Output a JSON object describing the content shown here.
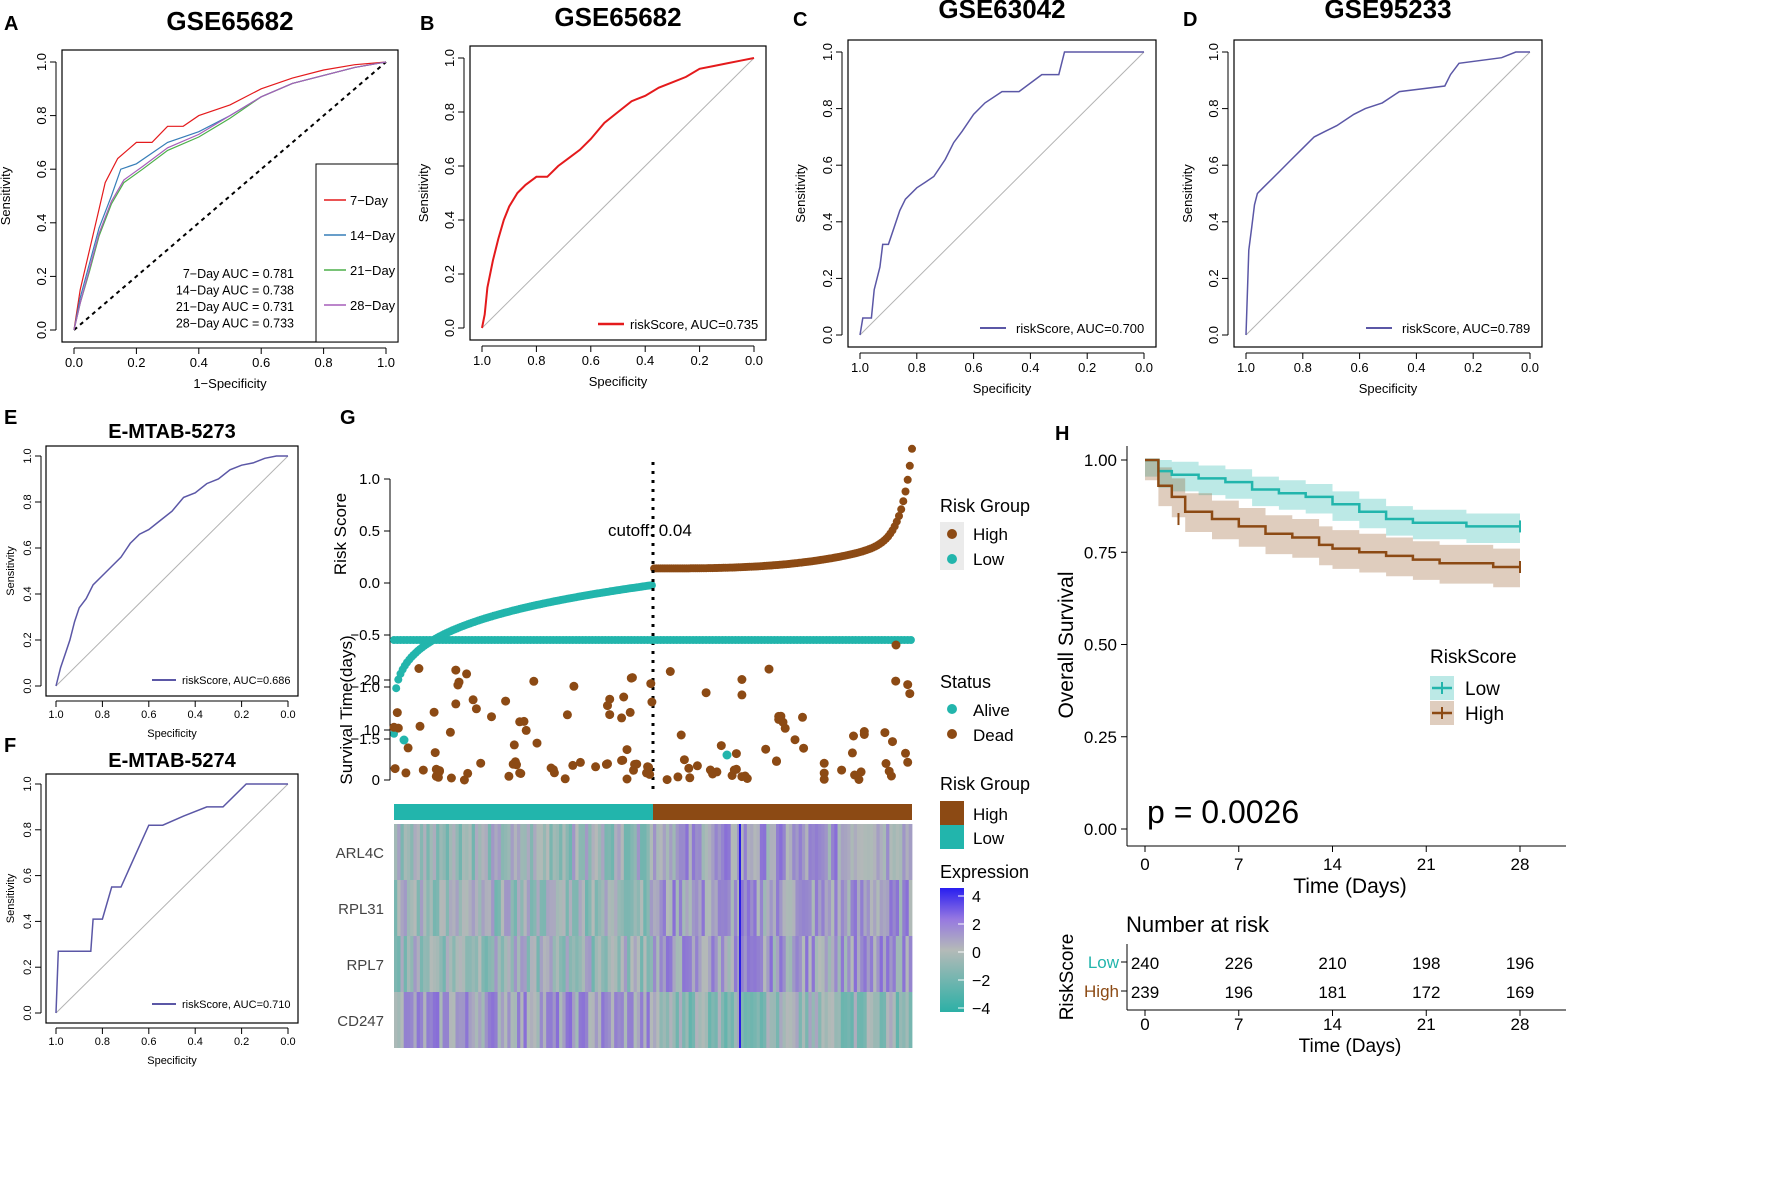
{
  "colors": {
    "red": "#e41a1c",
    "purple": "#5b57a6",
    "teal": "#22b5ac",
    "brown": "#8c4a14",
    "green": "#4daf4a",
    "blue": "#377eb8",
    "violet": "#a65eba",
    "grey": "#b3b3b3"
  },
  "panels": [
    {
      "id": "A",
      "letter": "A",
      "title": "GSE65682",
      "xlabel": "1−Specificity",
      "ylabel": "Sensitivity",
      "xticks": [
        "0.0",
        "0.2",
        "0.4",
        "0.6",
        "0.8",
        "1.0"
      ],
      "yticks": [
        "0.0",
        "0.2",
        "0.4",
        "0.6",
        "0.8",
        "1.0"
      ],
      "legend": [
        "7−Day",
        "14−Day",
        "21−Day",
        "28−Day"
      ],
      "auc_lines": [
        "7−Day AUC =  0.781",
        "14−Day AUC =  0.738",
        "21−Day AUC =  0.731",
        "28−Day AUC =  0.733"
      ]
    },
    {
      "id": "B",
      "letter": "B",
      "title": "GSE65682",
      "xlabel": "Specificity",
      "ylabel": "Sensitivity",
      "xticks": [
        "1.0",
        "0.8",
        "0.6",
        "0.4",
        "0.2",
        "0.0"
      ],
      "yticks": [
        "0.0",
        "0.2",
        "0.4",
        "0.6",
        "0.8",
        "1.0"
      ],
      "legend": "riskScore, AUC=0.735"
    },
    {
      "id": "C",
      "letter": "C",
      "title": "GSE63042",
      "xlabel": "Specificity",
      "ylabel": "Sensitivity",
      "xticks": [
        "1.0",
        "0.8",
        "0.6",
        "0.4",
        "0.2",
        "0.0"
      ],
      "yticks": [
        "0.0",
        "0.2",
        "0.4",
        "0.6",
        "0.8",
        "1.0"
      ],
      "legend": "riskScore, AUC=0.700"
    },
    {
      "id": "D",
      "letter": "D",
      "title": "GSE95233",
      "xlabel": "Specificity",
      "ylabel": "Sensitivity",
      "xticks": [
        "1.0",
        "0.8",
        "0.6",
        "0.4",
        "0.2",
        "0.0"
      ],
      "yticks": [
        "0.0",
        "0.2",
        "0.4",
        "0.6",
        "0.8",
        "1.0"
      ],
      "legend": "riskScore, AUC=0.789"
    },
    {
      "id": "E",
      "letter": "E",
      "title": "E-MTAB-5273",
      "xlabel": "Specificity",
      "ylabel": "Sensitivity",
      "xticks": [
        "1.0",
        "0.8",
        "0.6",
        "0.4",
        "0.2",
        "0.0"
      ],
      "yticks": [
        "0.0",
        "0.2",
        "0.4",
        "0.6",
        "0.8",
        "1.0"
      ],
      "legend": "riskScore, AUC=0.686"
    },
    {
      "id": "F",
      "letter": "F",
      "title": "E-MTAB-5274",
      "xlabel": "Specificity",
      "ylabel": "Sensitivity",
      "xticks": [
        "1.0",
        "0.8",
        "0.6",
        "0.4",
        "0.2",
        "0.0"
      ],
      "yticks": [
        "0.0",
        "0.2",
        "0.4",
        "0.6",
        "0.8",
        "1.0"
      ],
      "legend": "riskScore, AUC=0.710"
    }
  ],
  "panel_g": {
    "letter": "G",
    "risk_ylabel": "Risk Score",
    "risk_yticks": [
      "1.0",
      "0.5",
      "0.0",
      "−0.5",
      "−1.0",
      "−1.5"
    ],
    "cutoff_label": "cutoff: 0.04",
    "surv_ylabel": "Survival Time(days)",
    "surv_yticks": [
      "20",
      "10",
      "0"
    ],
    "legend_risk_title": "Risk Group",
    "legend_risk_items": [
      "High",
      "Low"
    ],
    "legend_status_title": "Status",
    "legend_status_items": [
      "Alive",
      "Dead"
    ],
    "legend_bar_title": "Risk Group",
    "legend_bar_items": [
      "High",
      "Low"
    ],
    "legend_expr_title": "Expression",
    "legend_expr_ticks": [
      "4",
      "2",
      "0",
      "−2",
      "−4"
    ],
    "genes": [
      "ARL4C",
      "RPL31",
      "RPL7",
      "CD247"
    ]
  },
  "panel_h": {
    "letter": "H",
    "ylabel": "Overall Survival",
    "xlabel": "Time (Days)",
    "yticks": [
      "1.00",
      "0.75",
      "0.50",
      "0.25",
      "0.00"
    ],
    "xticks": [
      "0",
      "7",
      "14",
      "21",
      "28"
    ],
    "legend_title": "RiskScore",
    "legend_items": [
      "Low",
      "High"
    ],
    "pvalue": "p = 0.0026",
    "risk_title": "Number at risk",
    "risk_ylabel": "RiskScore",
    "risk_rows": [
      "Low",
      "High"
    ],
    "risk_low": [
      "240",
      "226",
      "210",
      "198",
      "196"
    ],
    "risk_high": [
      "239",
      "196",
      "181",
      "172",
      "169"
    ],
    "risk_xlabel": "Time (Days)"
  },
  "chart_data": [
    {
      "type": "line",
      "panel": "A",
      "title": "GSE65682",
      "xlabel": "1−Specificity",
      "ylabel": "Sensitivity",
      "xlim": [
        0,
        1
      ],
      "ylim": [
        0,
        1
      ],
      "series": [
        {
          "name": "7−Day",
          "x": [
            0,
            0.02,
            0.05,
            0.08,
            0.1,
            0.14,
            0.2,
            0.25,
            0.3,
            0.35,
            0.4,
            0.5,
            0.6,
            0.7,
            0.8,
            0.9,
            1.0
          ],
          "y": [
            0,
            0.15,
            0.3,
            0.45,
            0.55,
            0.64,
            0.7,
            0.7,
            0.76,
            0.76,
            0.8,
            0.84,
            0.9,
            0.94,
            0.97,
            0.99,
            1.0
          ]
        },
        {
          "name": "14−Day",
          "x": [
            0,
            0.02,
            0.05,
            0.08,
            0.12,
            0.15,
            0.2,
            0.3,
            0.4,
            0.5,
            0.6,
            0.7,
            0.8,
            0.9,
            1.0
          ],
          "y": [
            0,
            0.12,
            0.25,
            0.38,
            0.5,
            0.6,
            0.62,
            0.7,
            0.74,
            0.8,
            0.87,
            0.92,
            0.95,
            0.98,
            1.0
          ]
        },
        {
          "name": "21−Day",
          "x": [
            0,
            0.02,
            0.05,
            0.08,
            0.12,
            0.16,
            0.22,
            0.3,
            0.4,
            0.5,
            0.6,
            0.7,
            0.8,
            0.9,
            1.0
          ],
          "y": [
            0,
            0.1,
            0.22,
            0.35,
            0.47,
            0.55,
            0.6,
            0.67,
            0.72,
            0.79,
            0.87,
            0.92,
            0.95,
            0.98,
            1.0
          ]
        },
        {
          "name": "28−Day",
          "x": [
            0,
            0.02,
            0.05,
            0.08,
            0.12,
            0.16,
            0.22,
            0.3,
            0.4,
            0.5,
            0.6,
            0.7,
            0.8,
            0.9,
            1.0
          ],
          "y": [
            0,
            0.1,
            0.23,
            0.36,
            0.48,
            0.56,
            0.61,
            0.68,
            0.73,
            0.8,
            0.87,
            0.92,
            0.95,
            0.98,
            1.0
          ]
        }
      ]
    },
    {
      "type": "line",
      "panel": "B",
      "title": "GSE65682",
      "xlabel": "Specificity",
      "ylabel": "Sensitivity",
      "xlim": [
        1,
        0
      ],
      "ylim": [
        0,
        1
      ],
      "series": [
        {
          "name": "riskScore, AUC=0.735",
          "x": [
            1,
            0.99,
            0.98,
            0.96,
            0.94,
            0.92,
            0.9,
            0.87,
            0.84,
            0.8,
            0.76,
            0.72,
            0.68,
            0.64,
            0.6,
            0.55,
            0.5,
            0.45,
            0.4,
            0.35,
            0.3,
            0.25,
            0.2,
            0.15,
            0.1,
            0.05,
            0
          ],
          "y": [
            0,
            0.05,
            0.15,
            0.25,
            0.33,
            0.4,
            0.45,
            0.5,
            0.53,
            0.56,
            0.56,
            0.6,
            0.63,
            0.66,
            0.7,
            0.76,
            0.8,
            0.84,
            0.86,
            0.89,
            0.91,
            0.93,
            0.96,
            0.97,
            0.98,
            0.99,
            1.0
          ]
        }
      ]
    },
    {
      "type": "line",
      "panel": "C",
      "title": "GSE63042",
      "xlabel": "Specificity",
      "ylabel": "Sensitivity",
      "xlim": [
        1,
        0
      ],
      "ylim": [
        0,
        1
      ],
      "series": [
        {
          "name": "riskScore, AUC=0.700",
          "x": [
            1,
            0.99,
            0.96,
            0.95,
            0.93,
            0.92,
            0.9,
            0.88,
            0.86,
            0.84,
            0.8,
            0.77,
            0.74,
            0.7,
            0.67,
            0.64,
            0.6,
            0.56,
            0.5,
            0.44,
            0.36,
            0.3,
            0.28,
            0
          ],
          "y": [
            0,
            0.06,
            0.06,
            0.16,
            0.24,
            0.32,
            0.32,
            0.38,
            0.44,
            0.48,
            0.52,
            0.54,
            0.56,
            0.62,
            0.68,
            0.72,
            0.78,
            0.82,
            0.86,
            0.86,
            0.92,
            0.92,
            1.0,
            1.0
          ]
        }
      ]
    },
    {
      "type": "line",
      "panel": "D",
      "title": "GSE95233",
      "xlabel": "Specificity",
      "ylabel": "Sensitivity",
      "xlim": [
        1,
        0
      ],
      "ylim": [
        0,
        1
      ],
      "series": [
        {
          "name": "riskScore, AUC=0.789",
          "x": [
            1,
            0.99,
            0.98,
            0.97,
            0.96,
            0.94,
            0.92,
            0.88,
            0.84,
            0.8,
            0.76,
            0.72,
            0.68,
            0.62,
            0.58,
            0.52,
            0.46,
            0.3,
            0.28,
            0.25,
            0.1,
            0.05,
            0
          ],
          "y": [
            0,
            0.3,
            0.38,
            0.46,
            0.5,
            0.52,
            0.54,
            0.58,
            0.62,
            0.66,
            0.7,
            0.72,
            0.74,
            0.78,
            0.8,
            0.82,
            0.86,
            0.88,
            0.92,
            0.96,
            0.98,
            1.0,
            1.0
          ]
        }
      ]
    },
    {
      "type": "line",
      "panel": "E",
      "title": "E-MTAB-5273",
      "xlabel": "Specificity",
      "ylabel": "Sensitivity",
      "xlim": [
        1,
        0
      ],
      "ylim": [
        0,
        1
      ],
      "series": [
        {
          "name": "riskScore, AUC=0.686",
          "x": [
            1,
            0.98,
            0.96,
            0.94,
            0.92,
            0.9,
            0.87,
            0.84,
            0.8,
            0.76,
            0.72,
            0.68,
            0.64,
            0.6,
            0.55,
            0.5,
            0.45,
            0.4,
            0.35,
            0.3,
            0.25,
            0.2,
            0.15,
            0.1,
            0.05,
            0
          ],
          "y": [
            0,
            0.08,
            0.14,
            0.2,
            0.28,
            0.34,
            0.38,
            0.44,
            0.48,
            0.52,
            0.56,
            0.62,
            0.66,
            0.68,
            0.72,
            0.76,
            0.82,
            0.84,
            0.88,
            0.9,
            0.94,
            0.96,
            0.97,
            0.99,
            1.0,
            1.0
          ]
        }
      ]
    },
    {
      "type": "line",
      "panel": "F",
      "title": "E-MTAB-5274",
      "xlabel": "Specificity",
      "ylabel": "Sensitivity",
      "xlim": [
        1,
        0
      ],
      "ylim": [
        0,
        1
      ],
      "series": [
        {
          "name": "riskScore, AUC=0.710",
          "x": [
            1,
            0.99,
            0.85,
            0.84,
            0.8,
            0.76,
            0.72,
            0.64,
            0.6,
            0.54,
            0.45,
            0.35,
            0.28,
            0.18,
            0.1,
            0.0
          ],
          "y": [
            0,
            0.27,
            0.27,
            0.41,
            0.41,
            0.55,
            0.55,
            0.73,
            0.82,
            0.82,
            0.86,
            0.9,
            0.9,
            1.0,
            1.0,
            1.0
          ]
        }
      ]
    },
    {
      "type": "scatter",
      "panel": "G",
      "ylabel": "Risk Score",
      "ylim": [
        -1.5,
        1.3
      ],
      "cutoff": 0.04,
      "n_low": 240,
      "n_high": 239
    },
    {
      "type": "line",
      "panel": "H",
      "xlabel": "Time (Days)",
      "ylabel": "Overall Survival",
      "xlim": [
        0,
        28
      ],
      "ylim": [
        0,
        1
      ],
      "series": [
        {
          "name": "Low",
          "x": [
            0,
            1,
            2,
            4,
            6,
            8,
            10,
            12,
            14,
            16,
            18,
            20,
            22,
            24,
            26,
            28
          ],
          "y": [
            1,
            0.97,
            0.96,
            0.95,
            0.94,
            0.92,
            0.91,
            0.9,
            0.88,
            0.86,
            0.84,
            0.83,
            0.83,
            0.82,
            0.82,
            0.82
          ]
        },
        {
          "name": "High",
          "x": [
            0,
            1,
            2,
            3,
            5,
            7,
            9,
            11,
            13,
            14,
            16,
            18,
            20,
            22,
            24,
            26,
            28
          ],
          "y": [
            1,
            0.93,
            0.9,
            0.86,
            0.84,
            0.82,
            0.8,
            0.79,
            0.77,
            0.76,
            0.75,
            0.74,
            0.73,
            0.72,
            0.72,
            0.71,
            0.71
          ]
        }
      ]
    }
  ]
}
